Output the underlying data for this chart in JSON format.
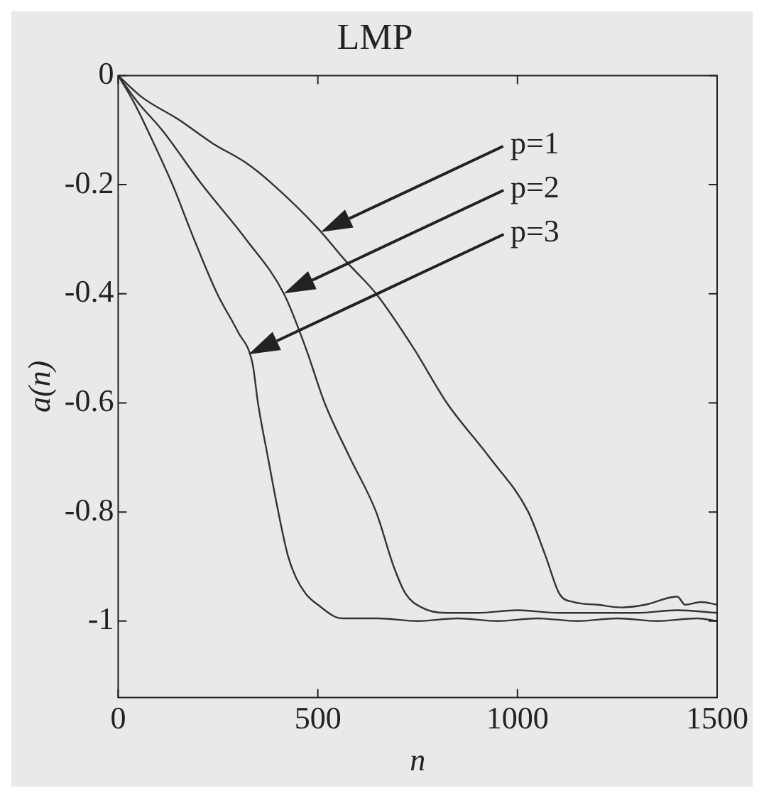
{
  "chart_data": {
    "type": "line",
    "title": "LMP",
    "xlabel": "n",
    "ylabel": "a(n)",
    "xlim": [
      0,
      1500
    ],
    "ylim": [
      -1.14,
      0
    ],
    "xticks": [
      0,
      500,
      1000,
      1500
    ],
    "yticks": [
      0,
      -0.2,
      -0.4,
      -0.6,
      -0.8,
      -1
    ],
    "grid": false,
    "legend": false,
    "marker": "none",
    "line_style": "solid",
    "series": [
      {
        "color": "#333333",
        "x": [
          0,
          60,
          150,
          238,
          320,
          388,
          500,
          570,
          646,
          740,
          823,
          930,
          1027,
          1070,
          1105,
          1140,
          1200,
          1260,
          1320,
          1400,
          1420,
          1460,
          1500
        ],
        "values": [
          0,
          -0.04,
          -0.08,
          -0.125,
          -0.16,
          -0.2,
          -0.28,
          -0.34,
          -0.4,
          -0.5,
          -0.6,
          -0.7,
          -0.8,
          -0.88,
          -0.95,
          -0.965,
          -0.97,
          -0.975,
          -0.97,
          -0.955,
          -0.97,
          -0.965,
          -0.97
        ]
      },
      {
        "color": "#333333",
        "x": [
          0,
          50,
          110,
          210,
          320,
          415,
          470,
          517,
          580,
          646,
          690,
          720,
          760,
          820,
          900,
          1000,
          1100,
          1200,
          1300,
          1400,
          1500
        ],
        "values": [
          0,
          -0.05,
          -0.1,
          -0.2,
          -0.3,
          -0.4,
          -0.5,
          -0.6,
          -0.7,
          -0.8,
          -0.9,
          -0.95,
          -0.975,
          -0.985,
          -0.985,
          -0.98,
          -0.985,
          -0.985,
          -0.985,
          -0.98,
          -0.985
        ]
      },
      {
        "color": "#333333",
        "x": [
          0,
          40,
          80,
          136,
          190,
          248,
          300,
          337,
          350,
          375,
          401,
          425,
          445,
          470,
          500,
          560,
          650,
          750,
          850,
          950,
          1050,
          1150,
          1250,
          1350,
          1450,
          1500
        ],
        "values": [
          0,
          -0.05,
          -0.11,
          -0.2,
          -0.3,
          -0.4,
          -0.47,
          -0.53,
          -0.6,
          -0.7,
          -0.8,
          -0.88,
          -0.92,
          -0.95,
          -0.97,
          -0.995,
          -0.995,
          -1.0,
          -0.995,
          -1.0,
          -0.995,
          -1.0,
          -0.995,
          -1.0,
          -0.995,
          -1.0
        ]
      }
    ],
    "annotations": [
      "p=1",
      "p=2",
      "p=3"
    ]
  }
}
